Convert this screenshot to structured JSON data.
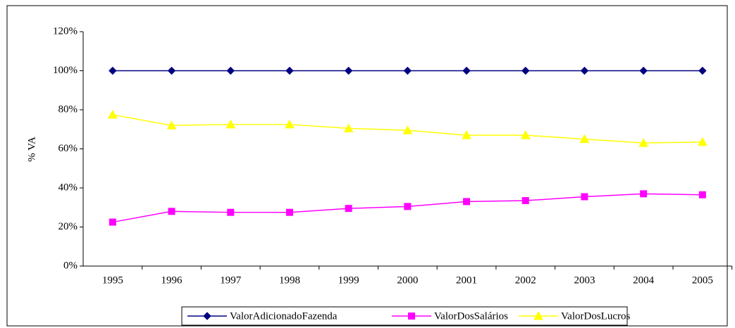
{
  "chart_data": {
    "type": "line",
    "y_label": "% VA",
    "categories": [
      "1995",
      "1996",
      "1997",
      "1998",
      "1999",
      "2000",
      "2001",
      "2002",
      "2003",
      "2004",
      "2005"
    ],
    "series": [
      {
        "name": "ValorAdicionadoFazenda",
        "color": "#000080",
        "marker": "diamond",
        "values": [
          100,
          100,
          100,
          100,
          100,
          100,
          100,
          100,
          100,
          100,
          100
        ]
      },
      {
        "name": "ValorDosSalários",
        "color": "#ff00ff",
        "marker": "square",
        "values": [
          22.5,
          28,
          27.5,
          27.5,
          29.5,
          30.5,
          33,
          33.5,
          35.5,
          37,
          36.5
        ]
      },
      {
        "name": "ValorDosLucros",
        "color": "#ffff00",
        "marker": "triangle",
        "values": [
          77.5,
          72,
          72.5,
          72.5,
          70.5,
          69.5,
          67,
          67,
          65,
          63,
          63.5
        ]
      }
    ],
    "ylim": [
      0,
      120
    ],
    "yticks": [
      {
        "value": 0,
        "label": "0%"
      },
      {
        "value": 20,
        "label": "20%"
      },
      {
        "value": 40,
        "label": "40%"
      },
      {
        "value": 60,
        "label": "60%"
      },
      {
        "value": 80,
        "label": "80%"
      },
      {
        "value": 100,
        "label": "100%"
      },
      {
        "value": 120,
        "label": "120%"
      }
    ],
    "grid": false,
    "legend": "bottom"
  }
}
